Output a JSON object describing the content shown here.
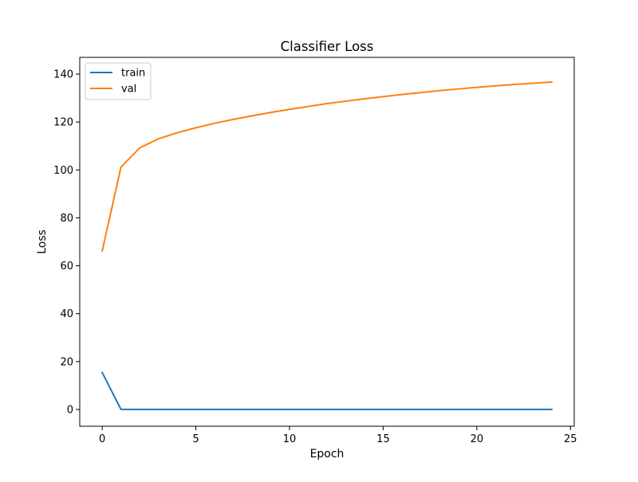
{
  "chart_data": {
    "type": "line",
    "title": "Classifier Loss",
    "xlabel": "Epoch",
    "ylabel": "Loss",
    "xlim": [
      -1.2,
      25.2
    ],
    "ylim": [
      -7,
      147
    ],
    "xticks": [
      0,
      5,
      10,
      15,
      20,
      25
    ],
    "yticks": [
      0,
      20,
      40,
      60,
      80,
      100,
      120,
      140
    ],
    "grid": false,
    "legend_position": "top-left",
    "x": [
      0,
      1,
      2,
      3,
      4,
      5,
      6,
      7,
      8,
      9,
      10,
      11,
      12,
      13,
      14,
      15,
      16,
      17,
      18,
      19,
      20,
      21,
      22,
      23,
      24
    ],
    "series": [
      {
        "name": "train",
        "color": "#1f77b4",
        "values": [
          15.4,
          0.02,
          0.01,
          0.01,
          0.01,
          0.01,
          0.01,
          0.01,
          0.01,
          0.01,
          0.01,
          0.01,
          0.01,
          0.01,
          0.01,
          0.01,
          0.01,
          0.01,
          0.01,
          0.01,
          0.01,
          0.01,
          0.01,
          0.01,
          0.01
        ]
      },
      {
        "name": "val",
        "color": "#ff7f0e",
        "values": [
          66.2,
          101.2,
          109.2,
          113.0,
          115.5,
          117.6,
          119.5,
          121.1,
          122.6,
          124.0,
          125.3,
          126.5,
          127.7,
          128.7,
          129.7,
          130.6,
          131.5,
          132.3,
          133.1,
          133.8,
          134.5,
          135.1,
          135.7,
          136.2,
          136.7
        ]
      }
    ]
  }
}
